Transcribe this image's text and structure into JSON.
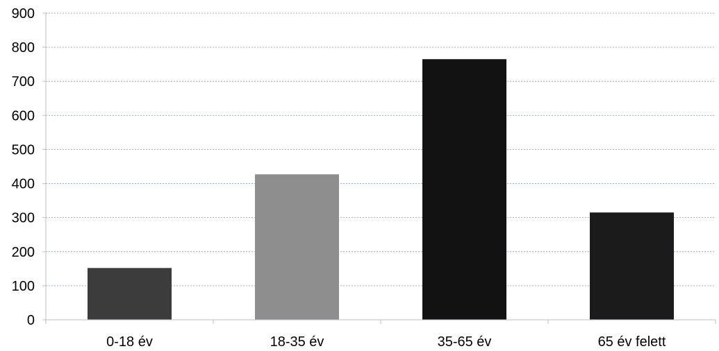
{
  "chart_data": {
    "type": "bar",
    "title": "",
    "xlabel": "",
    "ylabel": "",
    "categories": [
      "0-18 év",
      "18-35 év",
      "35-65 év",
      "65 év felett"
    ],
    "values": [
      152,
      427,
      765,
      315
    ],
    "bar_colors": [
      "#3c3c3c",
      "#8e8e8e",
      "#121212",
      "#1b1b1b"
    ],
    "ylim": [
      0,
      900
    ],
    "yticks": [
      0,
      100,
      200,
      300,
      400,
      500,
      600,
      700,
      800,
      900
    ],
    "grid": true,
    "legend": "none"
  }
}
